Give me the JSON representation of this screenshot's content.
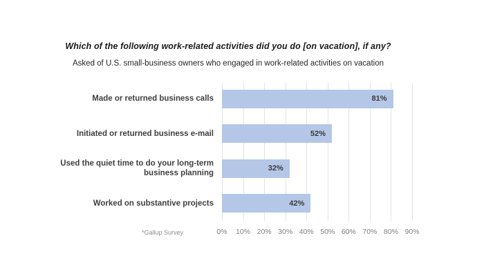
{
  "page": {
    "background": "#ffffff"
  },
  "chart_data": {
    "type": "bar",
    "orientation": "horizontal",
    "title": "Which of the following work-related activities did you do [on vacation], if any?",
    "subtitle": "Asked of U.S. small-business owners who engaged in work-related activities on vacation",
    "source_note": "*Gallup Survey",
    "categories": [
      "Made or returned business calls",
      "Initiated or returned business e-mail",
      "Used the quiet time to do your long-term\nbusiness planning",
      "Worked on substantive projects"
    ],
    "values": [
      81,
      52,
      32,
      42
    ],
    "data_labels": [
      "81%",
      "52%",
      "32%",
      "42%"
    ],
    "xlabel": "",
    "ylabel": "",
    "xlim": [
      0,
      90
    ],
    "x_ticks": [
      "0%",
      "10%",
      "20%",
      "30%",
      "40%",
      "50%",
      "60%",
      "70%",
      "80%",
      "90%"
    ],
    "grid": "vertical",
    "legend": "none",
    "bar_color": "#b4c7e7",
    "gridline_color": "#e3e3e3",
    "category_label_color": "#3f3f3f",
    "data_label_color": "#3b3b3b",
    "tick_label_color": "#7f7f7f"
  }
}
